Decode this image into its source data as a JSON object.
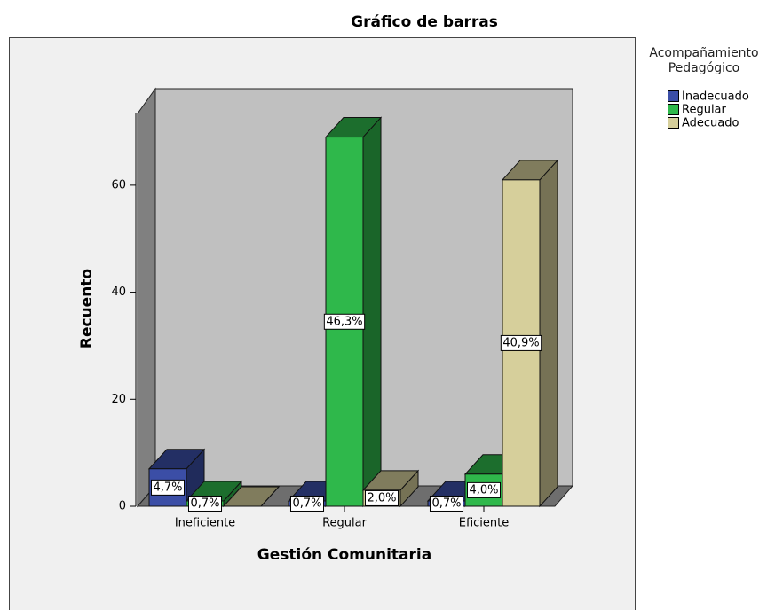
{
  "chart_data": {
    "type": "bar3d",
    "title": "Gráfico de barras",
    "x_label": "Gestión Comunitaria",
    "y_label": "Recuento",
    "legend_title": "Acompañamiento Pedagógico",
    "legend_position": "right",
    "categories": [
      "Ineficiente",
      "Regular",
      "Eficiente"
    ],
    "series": [
      {
        "name": "Inadecuado",
        "color": "#3b4ea6",
        "values": [
          7,
          1,
          1
        ],
        "value_labels": [
          "4,7%",
          "0,7%",
          "0,7%"
        ]
      },
      {
        "name": "Regular",
        "color": "#2fb84b",
        "values": [
          1,
          69,
          6
        ],
        "value_labels": [
          "0,7%",
          "46,3%",
          "4,0%"
        ]
      },
      {
        "name": "Adecuado",
        "color": "#d6cf9b",
        "values": [
          0,
          3,
          61
        ],
        "value_labels": [
          null,
          "2,0%",
          "40,9%"
        ]
      }
    ],
    "ylim": [
      0,
      73.4
    ],
    "yticks": [
      0,
      20,
      40,
      60
    ]
  }
}
